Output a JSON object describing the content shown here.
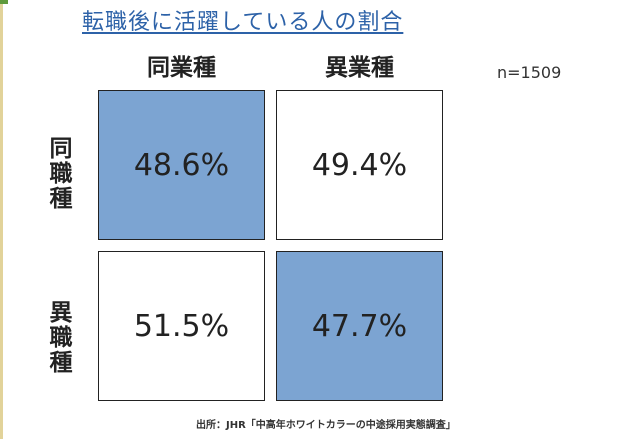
{
  "chart_data": {
    "type": "table",
    "title": "転職後に活躍している人の割合",
    "columns": [
      "同業種",
      "異業種"
    ],
    "rows": [
      "同職種",
      "異職種"
    ],
    "values": [
      [
        "48.6%",
        "49.4%"
      ],
      [
        "51.5%",
        "47.7%"
      ]
    ],
    "highlight": [
      [
        true,
        false
      ],
      [
        false,
        true
      ]
    ],
    "sample_size": "n=1509",
    "source": "出所：JHR「中高年ホワイトカラーの中途採用実態調査」"
  },
  "colors": {
    "highlight_fill": "#7ca4d2",
    "title": "#2d62a8",
    "border": "#222222"
  }
}
